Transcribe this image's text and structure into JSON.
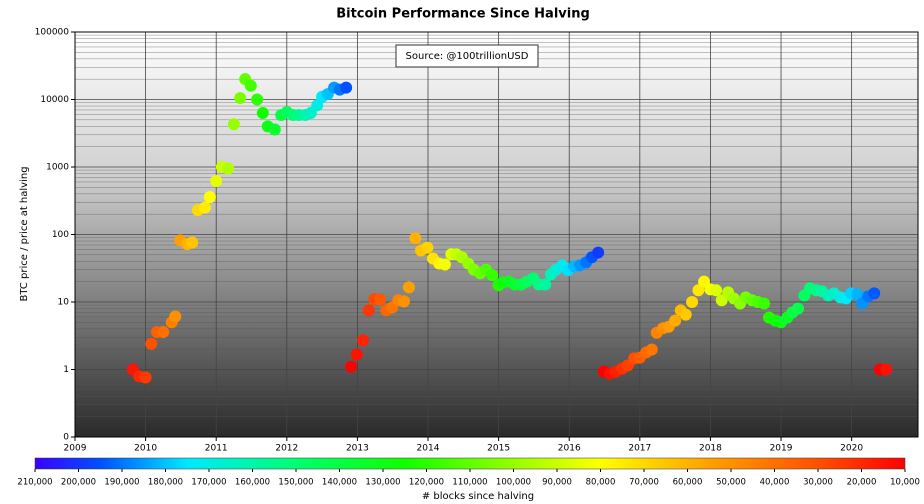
{
  "chart_data": {
    "type": "scatter",
    "title": "Bitcoin Performance Since Halving",
    "ylabel": "BTC price / price at halving",
    "annotation": "Source: @100trillionUSD",
    "log_y": true,
    "grid": true,
    "minor_grid": true,
    "xlim": [
      2009,
      2020.94
    ],
    "xticks": [
      2009,
      2010,
      2011,
      2012,
      2013,
      2014,
      2015,
      2016,
      2017,
      2018,
      2019,
      2020
    ],
    "ylim": [
      0.1,
      100000
    ],
    "yticks": [
      {
        "value": 0.1,
        "label": "0"
      },
      1,
      10,
      100,
      1000,
      10000,
      100000
    ],
    "x": [
      2009.82,
      2009.91,
      2010.0,
      2010.08,
      2010.16,
      2010.25,
      2010.37,
      2010.42,
      2010.49,
      2010.59,
      2010.66,
      2010.74,
      2010.84,
      2010.91,
      2011.0,
      2011.08,
      2011.17,
      2011.25,
      2011.34,
      2011.41,
      2011.49,
      2011.58,
      2011.66,
      2011.73,
      2011.83,
      2011.92,
      2012.0,
      2012.09,
      2012.17,
      2012.26,
      2012.34,
      2012.43,
      2012.5,
      2012.58,
      2012.67,
      2012.75,
      2012.84,
      2012.91,
      2012.99,
      2013.08,
      2013.16,
      2013.24,
      2013.32,
      2013.41,
      2013.49,
      2013.58,
      2013.66,
      2013.73,
      2013.82,
      2013.9,
      2013.99,
      2014.07,
      2014.16,
      2014.24,
      2014.33,
      2014.4,
      2014.48,
      2014.57,
      2014.65,
      2014.74,
      2014.82,
      2014.91,
      2015.0,
      2015.06,
      2015.15,
      2015.23,
      2015.32,
      2015.4,
      2015.49,
      2015.57,
      2015.66,
      2015.74,
      2015.81,
      2015.9,
      2015.98,
      2016.07,
      2016.15,
      2016.24,
      2016.32,
      2016.41,
      2016.49,
      2016.58,
      2016.66,
      2016.75,
      2016.83,
      2016.92,
      2017.0,
      2017.09,
      2017.17,
      2017.24,
      2017.33,
      2017.41,
      2017.5,
      2017.58,
      2017.65,
      2017.74,
      2017.83,
      2017.91,
      2018.0,
      2018.08,
      2018.16,
      2018.25,
      2018.33,
      2018.42,
      2018.5,
      2018.59,
      2018.67,
      2018.76,
      2018.83,
      2018.92,
      2019.0,
      2019.09,
      2019.16,
      2019.24,
      2019.33,
      2019.41,
      2019.5,
      2019.58,
      2019.67,
      2019.75,
      2019.84,
      2019.92,
      2019.99,
      2020.08,
      2020.15,
      2020.23,
      2020.32,
      2020.4,
      2020.49
    ],
    "values": [
      1.0,
      0.79,
      0.76,
      2.4,
      3.6,
      3.6,
      5,
      6.1,
      82,
      72,
      76,
      230,
      250,
      360,
      620,
      1000,
      950,
      4300,
      10500,
      20000,
      16000,
      10000,
      6300,
      4000,
      3600,
      5900,
      6500,
      5900,
      5900,
      5900,
      6300,
      8200,
      11000,
      12000,
      15000,
      14000,
      15000,
      1.1,
      1.67,
      2.7,
      7.5,
      11,
      10.9,
      7.5,
      8.3,
      10.6,
      10.2,
      16.5,
      88,
      58,
      64,
      44,
      37,
      36,
      51,
      51,
      46,
      37,
      30,
      26.5,
      30,
      25,
      17.7,
      19.5,
      20,
      18.2,
      18.2,
      20,
      22.4,
      18.2,
      18.2,
      25.6,
      30,
      34.9,
      29.5,
      33.7,
      34.9,
      38.7,
      46,
      54,
      0.93,
      0.87,
      0.93,
      1.03,
      1.15,
      1.46,
      1.5,
      1.79,
      1.98,
      3.5,
      4.1,
      4.3,
      5.3,
      7.5,
      6.5,
      10,
      14.9,
      20,
      15.4,
      14.9,
      10.6,
      13.9,
      11.3,
      9.5,
      11.7,
      10.6,
      10,
      9.5,
      5.9,
      5.3,
      5,
      5.9,
      7,
      8,
      12.5,
      15.9,
      14.9,
      14.4,
      12.5,
      13.4,
      11.7,
      11.3,
      13.4,
      13,
      9.5,
      12,
      13.4,
      1.0,
      1.0
    ],
    "c": [
      15000,
      20000,
      25000,
      30000,
      35000,
      40000,
      45000,
      50000,
      55000,
      60000,
      65000,
      70000,
      75000,
      80000,
      85000,
      90000,
      95000,
      100000,
      105000,
      110000,
      115000,
      120000,
      125000,
      130000,
      135000,
      140000,
      145000,
      150000,
      155000,
      160000,
      165000,
      170000,
      175000,
      180000,
      185000,
      190000,
      195000,
      10000,
      14500,
      19000,
      23500,
      28000,
      32500,
      37000,
      41500,
      46000,
      50500,
      55000,
      59500,
      64000,
      68500,
      73000,
      77500,
      82000,
      86500,
      91000,
      95500,
      100000,
      104500,
      109000,
      113500,
      118000,
      122500,
      127000,
      131500,
      136000,
      140500,
      145000,
      149500,
      154000,
      158500,
      163000,
      167500,
      172000,
      176500,
      181000,
      185500,
      190000,
      194500,
      199000,
      10000,
      14000,
      18000,
      22000,
      26000,
      30000,
      34000,
      38000,
      42000,
      46000,
      50000,
      54000,
      58000,
      62000,
      66000,
      70000,
      74000,
      78000,
      82000,
      86000,
      90000,
      94000,
      98000,
      102000,
      106000,
      110000,
      114000,
      118000,
      122000,
      126000,
      130000,
      134000,
      138000,
      142000,
      146000,
      150000,
      154000,
      158000,
      162000,
      166000,
      170000,
      174000,
      178000,
      182000,
      186000,
      190000,
      194000,
      10000,
      14000
    ],
    "colorbar": {
      "label": "# blocks since halving",
      "lim": [
        210000,
        10000
      ],
      "stops": [
        {
          "value": 210000,
          "color": "#3a00ff"
        },
        {
          "value": 195000,
          "color": "#0050ff"
        },
        {
          "value": 175000,
          "color": "#00e8ff"
        },
        {
          "value": 150000,
          "color": "#00ff70"
        },
        {
          "value": 125000,
          "color": "#10ff00"
        },
        {
          "value": 95000,
          "color": "#b0ff00"
        },
        {
          "value": 80000,
          "color": "#ffff00"
        },
        {
          "value": 55000,
          "color": "#ffa000"
        },
        {
          "value": 30000,
          "color": "#ff5000"
        },
        {
          "value": 10000,
          "color": "#ff0000"
        }
      ],
      "ticks": [
        {
          "value": 210000,
          "label": "210,000"
        },
        {
          "value": 200000,
          "label": "200,000"
        },
        {
          "value": 190000,
          "label": "190,000"
        },
        {
          "value": 180000,
          "label": "180,000"
        },
        {
          "value": 170000,
          "label": "170,000"
        },
        {
          "value": 160000,
          "label": "160,000"
        },
        {
          "value": 150000,
          "label": "150,000"
        },
        {
          "value": 140000,
          "label": "140,000"
        },
        {
          "value": 130000,
          "label": "130,000"
        },
        {
          "value": 120000,
          "label": "120,000"
        },
        {
          "value": 110000,
          "label": "110,000"
        },
        {
          "value": 100000,
          "label": "100,000"
        },
        {
          "value": 90000,
          "label": "90,000"
        },
        {
          "value": 80000,
          "label": "80,000"
        },
        {
          "value": 70000,
          "label": "70,000"
        },
        {
          "value": 60000,
          "label": "60,000"
        },
        {
          "value": 50000,
          "label": "50,000"
        },
        {
          "value": 40000,
          "label": "40,000"
        },
        {
          "value": 30000,
          "label": "30,000"
        },
        {
          "value": 20000,
          "label": "20,000"
        },
        {
          "value": 10000,
          "label": "10,000"
        }
      ]
    }
  }
}
